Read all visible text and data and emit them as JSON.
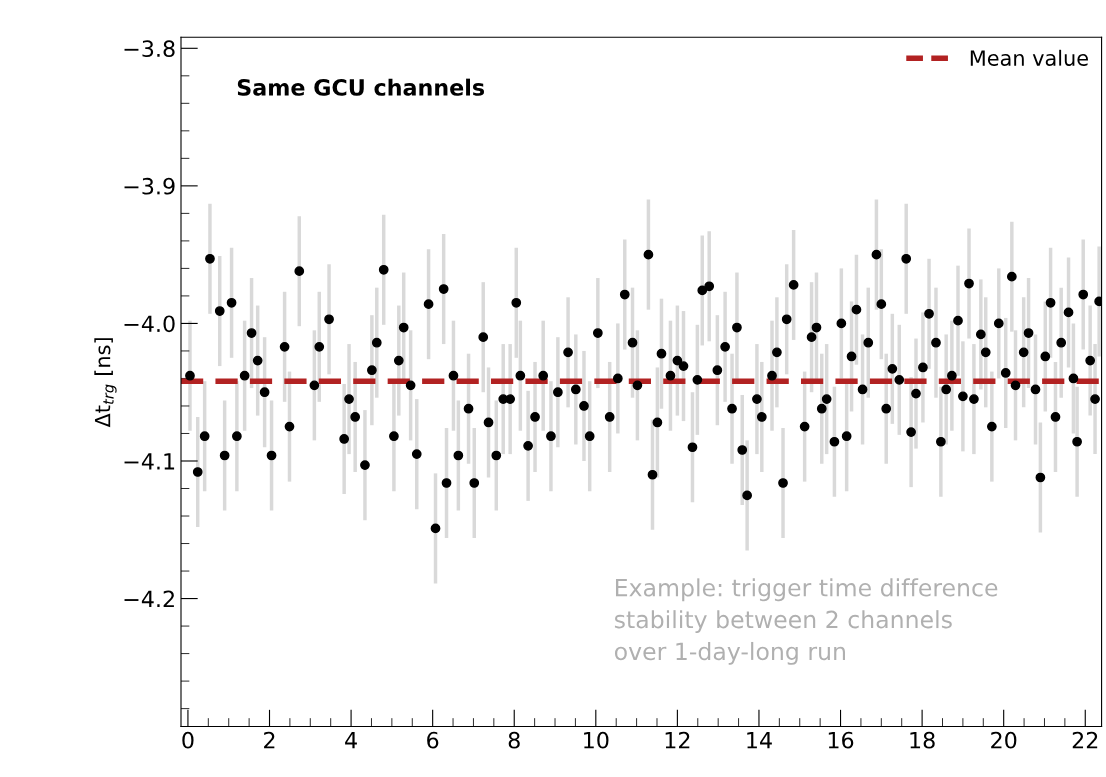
{
  "chart_data": {
    "type": "scatter",
    "ylabel": "Δt$_{trg}$ [ns]",
    "annotations": [
      "Same GCU channels",
      "Example: trigger time difference\nstability between 2 channels\nover 1-day-long run"
    ],
    "xlim": [
      -0.17,
      22.4
    ],
    "xticks": [
      0,
      2,
      4,
      6,
      8,
      10,
      12,
      14,
      16,
      18,
      20,
      22
    ],
    "ylim": [
      -4.293,
      -3.792
    ],
    "yticks": [
      {
        "value": -3.8,
        "label": "−3.8"
      },
      {
        "value": -3.9,
        "label": "−3.9"
      },
      {
        "value": -4.0,
        "label": "−4.0"
      },
      {
        "value": -4.1,
        "label": "−4.1"
      },
      {
        "value": -4.2,
        "label": "−4.2"
      }
    ],
    "marker": "circle",
    "grid": false,
    "legend": "top right",
    "ref_lines": [
      {
        "axis": "y",
        "value": -4.042,
        "label": "Mean value",
        "color": "#b22222",
        "line_style": "dashed"
      }
    ],
    "series": [
      {
        "color": "#000000",
        "x": [
          0.05,
          0.24,
          0.54,
          0.78,
          0.9,
          1.2,
          1.56,
          1.88,
          2.05,
          2.37,
          2.73,
          3.1,
          3.46,
          3.83,
          4.1,
          4.34,
          4.63,
          4.8,
          5.05,
          5.29,
          5.61,
          5.9,
          6.07,
          6.27,
          6.51,
          6.88,
          7.24,
          7.56,
          7.9,
          8.05,
          8.34,
          8.71,
          9.07,
          9.32,
          9.71,
          10.05,
          10.34,
          10.71,
          11.02,
          11.29,
          11.39,
          11.61,
          11.83,
          12.15,
          12.37,
          12.61,
          12.98,
          13.34,
          13.46,
          13.71,
          13.95,
          14.32,
          14.59,
          14.85,
          15.12,
          15.41,
          15.66,
          16.02,
          16.27,
          16.54,
          16.88,
          17.12,
          17.44,
          17.61,
          17.85,
          18.17,
          18.46,
          18.73,
          19.0,
          19.15,
          19.44,
          19.71,
          19.88,
          20.2,
          20.49,
          20.78,
          20.9,
          21.15,
          21.41,
          21.71,
          21.95,
          22.24,
          0.41,
          1.07,
          1.39,
          1.71,
          2.49,
          3.22,
          3.95,
          4.51,
          5.17,
          5.46,
          6.34,
          6.63,
          7.02,
          7.37,
          7.73,
          8.15,
          8.51,
          8.9,
          9.51,
          9.85,
          10.54,
          10.9,
          11.51,
          12.0,
          12.49,
          12.78,
          13.17,
          13.59,
          14.07,
          14.44,
          14.68,
          15.29,
          15.54,
          15.85,
          16.15,
          16.39,
          16.68,
          17.0,
          17.27,
          17.73,
          18.02,
          18.34,
          18.59,
          18.88,
          19.27,
          19.56,
          20.05,
          20.29,
          20.61,
          21.02,
          21.27,
          21.59,
          21.8,
          22.12,
          22.34
        ],
        "values": [
          -4.038,
          -4.108,
          -3.953,
          -3.991,
          -4.096,
          -4.082,
          -4.007,
          -4.05,
          -4.096,
          -4.017,
          -3.962,
          -4.045,
          -3.997,
          -4.084,
          -4.068,
          -4.103,
          -4.014,
          -3.961,
          -4.082,
          -4.003,
          -4.095,
          -3.986,
          -4.149,
          -3.975,
          -4.038,
          -4.062,
          -4.01,
          -4.096,
          -4.055,
          -3.985,
          -4.089,
          -4.038,
          -4.05,
          -4.021,
          -4.06,
          -4.007,
          -4.068,
          -3.979,
          -4.045,
          -3.95,
          -4.11,
          -4.022,
          -4.038,
          -4.031,
          -4.09,
          -3.976,
          -4.034,
          -4.062,
          -4.003,
          -4.125,
          -4.055,
          -4.038,
          -4.116,
          -3.972,
          -4.075,
          -4.003,
          -4.055,
          -4.0,
          -4.024,
          -4.048,
          -3.95,
          -4.062,
          -4.041,
          -3.953,
          -4.051,
          -3.993,
          -4.086,
          -4.038,
          -4.053,
          -3.971,
          -4.008,
          -4.075,
          -4.0,
          -3.966,
          -4.021,
          -4.048,
          -4.112,
          -3.985,
          -4.014,
          -4.04,
          -3.979,
          -4.055,
          -4.082,
          -3.985,
          -4.038,
          -4.027,
          -4.075,
          -4.017,
          -4.055,
          -4.034,
          -4.027,
          -4.045,
          -4.116,
          -4.096,
          -4.116,
          -4.072,
          -4.055,
          -4.038,
          -4.068,
          -4.082,
          -4.048,
          -4.082,
          -4.04,
          -4.014,
          -4.072,
          -4.027,
          -4.041,
          -3.973,
          -4.017,
          -4.092,
          -4.068,
          -4.021,
          -3.997,
          -4.01,
          -4.062,
          -4.086,
          -4.082,
          -3.99,
          -4.014,
          -3.986,
          -4.033,
          -4.079,
          -4.032,
          -4.014,
          -4.048,
          -3.998,
          -4.055,
          -4.021,
          -4.036,
          -4.045,
          -4.007,
          -4.024,
          -4.068,
          -3.992,
          -4.086,
          -4.027,
          -3.984
        ],
        "errors": [
          0.04,
          0.04,
          0.04,
          0.04,
          0.04,
          0.04,
          0.04,
          0.04,
          0.04,
          0.04,
          0.04,
          0.04,
          0.04,
          0.04,
          0.04,
          0.04,
          0.04,
          0.04,
          0.04,
          0.04,
          0.04,
          0.04,
          0.04,
          0.04,
          0.04,
          0.04,
          0.04,
          0.04,
          0.04,
          0.04,
          0.04,
          0.04,
          0.04,
          0.04,
          0.04,
          0.04,
          0.04,
          0.04,
          0.04,
          0.04,
          0.04,
          0.04,
          0.04,
          0.04,
          0.04,
          0.04,
          0.04,
          0.04,
          0.04,
          0.04,
          0.04,
          0.04,
          0.04,
          0.04,
          0.04,
          0.04,
          0.04,
          0.04,
          0.04,
          0.04,
          0.04,
          0.04,
          0.04,
          0.04,
          0.04,
          0.04,
          0.04,
          0.04,
          0.04,
          0.04,
          0.04,
          0.04,
          0.04,
          0.04,
          0.04,
          0.04,
          0.04,
          0.04,
          0.04,
          0.04,
          0.04,
          0.04,
          0.04,
          0.04,
          0.04,
          0.04,
          0.04,
          0.04,
          0.04,
          0.04,
          0.04,
          0.04,
          0.04,
          0.04,
          0.04,
          0.04,
          0.04,
          0.04,
          0.04,
          0.04,
          0.04,
          0.04,
          0.04,
          0.04,
          0.04,
          0.04,
          0.04,
          0.04,
          0.04,
          0.04,
          0.04,
          0.04,
          0.04,
          0.04,
          0.04,
          0.04,
          0.04,
          0.04,
          0.04,
          0.04,
          0.04,
          0.04,
          0.04,
          0.04,
          0.04,
          0.04,
          0.04,
          0.04,
          0.04,
          0.04,
          0.04,
          0.04,
          0.04,
          0.04,
          0.04,
          0.04,
          0.04
        ]
      }
    ]
  }
}
